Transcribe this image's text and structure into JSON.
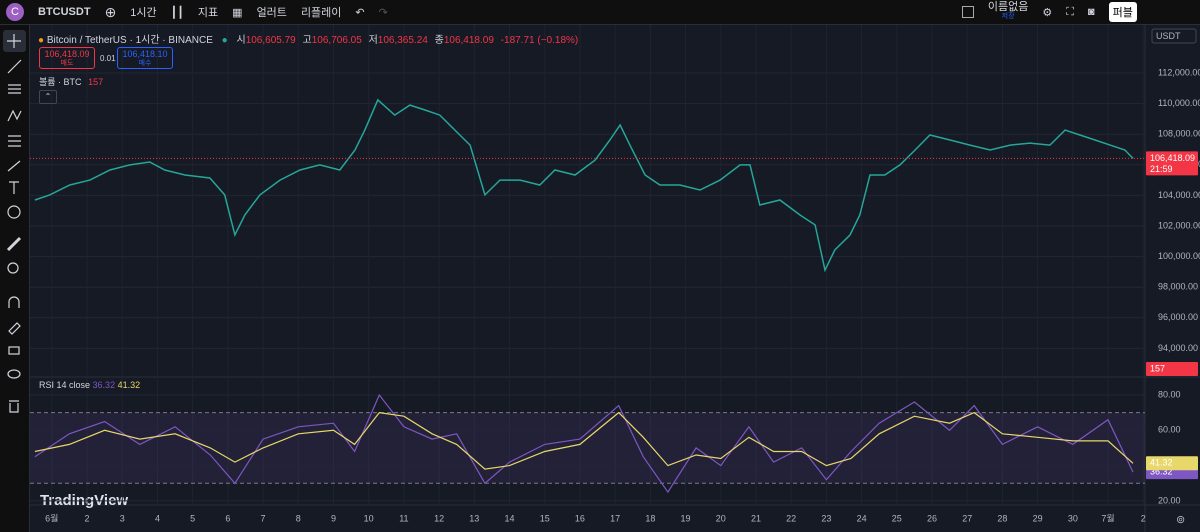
{
  "toolbar": {
    "symbol": "BTCUSDT",
    "interval": "1시간",
    "indicators": "지표",
    "alerts": "얼러트",
    "replay": "리플레이",
    "layout_name": "이름없음",
    "layout_status": "저장",
    "publish": "퍼블"
  },
  "legend": {
    "title": "Bitcoin / TetherUS · 1시간 · BINANCE",
    "ohlc": [
      {
        "label": "시",
        "value": "106,605.79"
      },
      {
        "label": "고",
        "value": "106,706.05"
      },
      {
        "label": "저",
        "value": "106,365.24"
      },
      {
        "label": "종",
        "value": "106,418.09"
      }
    ],
    "change": "-187.71 (−0.18%)",
    "sell_price": "106,418.09",
    "sell_label": "매도",
    "spread": "0.01",
    "buy_price": "106,418.10",
    "buy_label": "매수",
    "volume_label": "볼륨 · BTC",
    "volume_value": "157",
    "rsi_label": "RSI 14 close",
    "countdown": "21:59"
  },
  "currency": "USDT",
  "branding": "TradingView",
  "chart_data": [
    {
      "type": "line",
      "name": "price",
      "color": "#26a69a",
      "last_color": "#f23645",
      "x": [
        -0.48,
        -0.06,
        0.51,
        1.08,
        1.65,
        2.22,
        2.78,
        3.21,
        3.78,
        4.49,
        4.91,
        5.2,
        5.48,
        5.91,
        6.48,
        7.05,
        7.61,
        8.18,
        8.61,
        8.89,
        9.26,
        9.74,
        10.17,
        10.6,
        11.02,
        11.45,
        11.88,
        12.3,
        12.73,
        13.3,
        13.86,
        14.29,
        14.86,
        15.43,
        15.85,
        16.14,
        16.42,
        16.85,
        17.27,
        17.84,
        18.41,
        18.98,
        19.55,
        19.83,
        20.11,
        20.68,
        21.25,
        21.68,
        21.96,
        22.24,
        22.67,
        22.95,
        23.24,
        23.66,
        24.09,
        24.52,
        24.94,
        25.51,
        26.08,
        26.65,
        27.22,
        27.78,
        28.35,
        28.78,
        29.2,
        29.63,
        30.06,
        30.48,
        30.71
      ],
      "values": [
        103700,
        104030,
        104680,
        105000,
        105660,
        105990,
        106180,
        105660,
        105330,
        105140,
        104030,
        101410,
        102720,
        104030,
        105000,
        105660,
        105990,
        105660,
        106970,
        108270,
        110240,
        109250,
        109900,
        109580,
        109250,
        108270,
        107290,
        104030,
        105000,
        105000,
        104680,
        105660,
        105330,
        106310,
        107620,
        108600,
        107290,
        105330,
        104680,
        104680,
        104350,
        105000,
        105990,
        105990,
        103370,
        103700,
        102720,
        102070,
        99120,
        100430,
        101410,
        102720,
        105330,
        105330,
        105990,
        106970,
        107950,
        107620,
        107290,
        106970,
        107290,
        107420,
        107290,
        108270,
        107950,
        107620,
        107290,
        106970,
        106418.09
      ],
      "last_label": "106,418.09",
      "xlim": [
        -0.62,
        31.05
      ],
      "ylim": [
        92261,
        115137
      ],
      "yticks": [
        {
          "value": 94000,
          "label": "94,000.00"
        },
        {
          "value": 96000,
          "label": "96,000.00"
        },
        {
          "value": 98000,
          "label": "98,000.00"
        },
        {
          "value": 100000,
          "label": "100,000.00"
        },
        {
          "value": 102000,
          "label": "102,000.00"
        },
        {
          "value": 104000,
          "label": "104,000.00"
        },
        {
          "value": 106000,
          "label": "106,000.00"
        },
        {
          "value": 108000,
          "label": "108,000.00"
        },
        {
          "value": 110000,
          "label": "110,000.00"
        },
        {
          "value": 112000,
          "label": "112,000.00"
        }
      ],
      "xticks": [
        {
          "value": 0,
          "label": "6월"
        },
        {
          "value": 1,
          "label": "2"
        },
        {
          "value": 2,
          "label": "3"
        },
        {
          "value": 3,
          "label": "4"
        },
        {
          "value": 4,
          "label": "5"
        },
        {
          "value": 5,
          "label": "6"
        },
        {
          "value": 6,
          "label": "7"
        },
        {
          "value": 7,
          "label": "8"
        },
        {
          "value": 8,
          "label": "9"
        },
        {
          "value": 9,
          "label": "10"
        },
        {
          "value": 10,
          "label": "11"
        },
        {
          "value": 11,
          "label": "12"
        },
        {
          "value": 12,
          "label": "13"
        },
        {
          "value": 13,
          "label": "14"
        },
        {
          "value": 14,
          "label": "15"
        },
        {
          "value": 15,
          "label": "16"
        },
        {
          "value": 16,
          "label": "17"
        },
        {
          "value": 17,
          "label": "18"
        },
        {
          "value": 18,
          "label": "19"
        },
        {
          "value": 19,
          "label": "20"
        },
        {
          "value": 20,
          "label": "21"
        },
        {
          "value": 21,
          "label": "22"
        },
        {
          "value": 22,
          "label": "23"
        },
        {
          "value": 23,
          "label": "24"
        },
        {
          "value": 24,
          "label": "25"
        },
        {
          "value": 25,
          "label": "26"
        },
        {
          "value": 26,
          "label": "27"
        },
        {
          "value": 27,
          "label": "28"
        },
        {
          "value": 28,
          "label": "29"
        },
        {
          "value": 29,
          "label": "30"
        },
        {
          "value": 30,
          "label": "7월"
        },
        {
          "value": 31,
          "label": "2"
        }
      ],
      "grid": true
    },
    {
      "type": "line",
      "name": "rsi",
      "x": [
        -0.48,
        0.5,
        1.5,
        2.5,
        3.5,
        4.5,
        5.2,
        6,
        7,
        8,
        8.6,
        9.3,
        10,
        10.8,
        11.5,
        12.3,
        13,
        14,
        15,
        16.1,
        16.8,
        17.5,
        18.3,
        19,
        19.8,
        20.5,
        21.3,
        22,
        22.7,
        23.5,
        24.5,
        25.5,
        26.2,
        27,
        28,
        29,
        30,
        30.71
      ],
      "series": [
        {
          "name": "RSI",
          "color": "#7e57c2",
          "values": [
            45,
            58,
            65,
            52,
            62,
            46,
            30,
            55,
            62,
            64,
            48,
            80,
            62,
            55,
            58,
            30,
            42,
            52,
            55,
            74,
            45,
            25,
            50,
            40,
            62,
            42,
            50,
            32,
            48,
            64,
            76,
            60,
            74,
            52,
            62,
            52,
            66,
            36.32
          ],
          "last_label": "36.32"
        },
        {
          "name": "RSI MA",
          "color": "#e8d76a",
          "values": [
            48,
            52,
            60,
            55,
            58,
            50,
            42,
            50,
            58,
            60,
            52,
            70,
            68,
            58,
            52,
            38,
            40,
            48,
            52,
            70,
            56,
            40,
            46,
            44,
            56,
            48,
            48,
            40,
            44,
            58,
            68,
            64,
            70,
            58,
            56,
            54,
            54,
            41.32
          ],
          "last_label": "41.32"
        }
      ],
      "band": [
        30,
        70
      ],
      "xlim": [
        -0.62,
        31.05
      ],
      "ylim": [
        17.7,
        89.6
      ],
      "yticks": [
        {
          "value": 20,
          "label": "20.00"
        },
        {
          "value": 40,
          "label": "40.00"
        },
        {
          "value": 60,
          "label": "60.00"
        },
        {
          "value": 80,
          "label": "80.00"
        }
      ],
      "grid": true
    }
  ]
}
